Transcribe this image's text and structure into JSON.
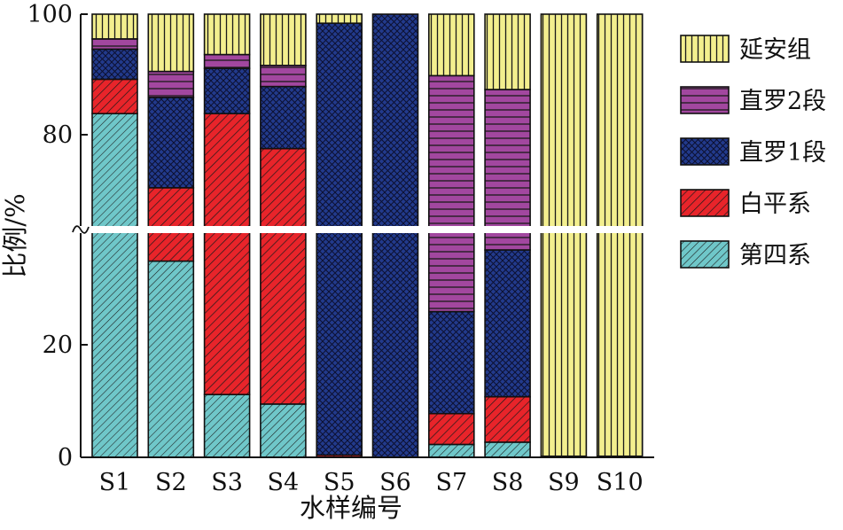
{
  "chart_data": {
    "type": "bar",
    "stacked": true,
    "axis_break": true,
    "xlabel": "水样编号",
    "ylabel": "比例/%",
    "yticks": [
      "0",
      "20",
      "80",
      "100"
    ],
    "ylim": [
      0,
      100
    ],
    "categories": [
      "S1",
      "S2",
      "S3",
      "S4",
      "S5",
      "S6",
      "S7",
      "S8",
      "S9",
      "S10"
    ],
    "series": [
      {
        "name": "第四系",
        "color": "#6fc7c9",
        "pattern": "diag-thin",
        "values": [
          83.5,
          35,
          11.2,
          9.5,
          0,
          0,
          2.3,
          2.7,
          0,
          0
        ]
      },
      {
        "name": "白平系",
        "color": "#e8242a",
        "pattern": "diag-thick",
        "values": [
          5.7,
          36.2,
          72.3,
          68.2,
          0.4,
          0,
          5.5,
          8.1,
          0.2,
          0.2
        ]
      },
      {
        "name": "直罗1段",
        "color": "#223a8c",
        "pattern": "cross",
        "values": [
          5.0,
          15.0,
          7.5,
          10.3,
          98.1,
          100,
          18.2,
          26.2,
          0,
          0
        ]
      },
      {
        "name": "直罗2段",
        "color": "#a2479f",
        "pattern": "hlines",
        "values": [
          1.7,
          4.3,
          2.3,
          3.5,
          0,
          0,
          63.8,
          50.5,
          0,
          0
        ]
      },
      {
        "name": "延安组",
        "color": "#f3ef8e",
        "pattern": "vlines",
        "values": [
          4.1,
          9.5,
          6.7,
          8.5,
          1.5,
          0,
          10.2,
          12.5,
          99.8,
          99.8
        ]
      }
    ],
    "legend": [
      "延安组",
      "直罗2段",
      "直罗1段",
      "白平系",
      "第四系"
    ],
    "legend_position": "right"
  }
}
